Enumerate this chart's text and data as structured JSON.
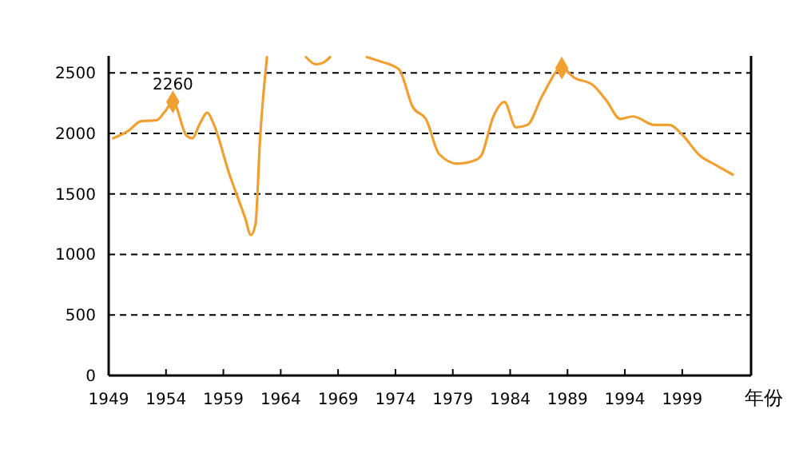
{
  "chart_data": {
    "type": "line",
    "xlabel": "年份",
    "xlim": [
      1949,
      2005
    ],
    "ylim": [
      0,
      2640
    ],
    "xticks": [
      1949,
      1954,
      1959,
      1964,
      1969,
      1974,
      1979,
      1984,
      1989,
      1994,
      1999
    ],
    "yticks": [
      0,
      500,
      1000,
      1500,
      2000,
      2500
    ],
    "grid": "y",
    "line_style": "solid",
    "marker": "none",
    "series": [
      {
        "color": "#f0a030",
        "x": [
          1949.4,
          1950.7,
          1951.8,
          1953.2,
          1953.9,
          1954.6,
          1955.8,
          1956.3,
          1956.9,
          1957.6,
          1958.1,
          1959.5,
          1960.9,
          1961.4,
          1961.8,
          1962.2,
          1962.8,
          1964.5,
          1966.2,
          1967.1,
          1967.8,
          1968.3,
          1970,
          1971.5,
          1972.5,
          1974.3,
          1975.5,
          1976.7,
          1977.8,
          1979.4,
          1981,
          1981.5,
          1982.5,
          1983.5,
          1984.5,
          1985.5,
          1986.8,
          1988.5,
          1989.6,
          1991.2,
          1992.4,
          1993.6,
          1994.7,
          1996.6,
          1997.9,
          1998.9,
          2000.5,
          2001.9,
          2003.4
        ],
        "values": [
          1960,
          2020,
          2100,
          2110,
          2180,
          2260,
          1980,
          1960,
          2070,
          2170,
          2090,
          1670,
          1300,
          1160,
          1250,
          1960,
          2630,
          null,
          2630,
          2570,
          2590,
          2630,
          null,
          2630,
          2600,
          2530,
          2220,
          2110,
          1830,
          1750,
          1780,
          1820,
          2130,
          2260,
          2050,
          2070,
          2310,
          2540,
          2460,
          2400,
          2270,
          2120,
          2140,
          2070,
          2070,
          2000,
          1820,
          1740,
          1660
        ]
      },
      {
        "type": "scatter",
        "color": "#f0a030",
        "marker": "diamond",
        "x": [
          1954.6,
          1988.5
        ],
        "values": [
          2260,
          2540
        ]
      }
    ],
    "annotations": [
      {
        "text": "2260",
        "x": 1954.6,
        "y": 2260
      }
    ]
  }
}
